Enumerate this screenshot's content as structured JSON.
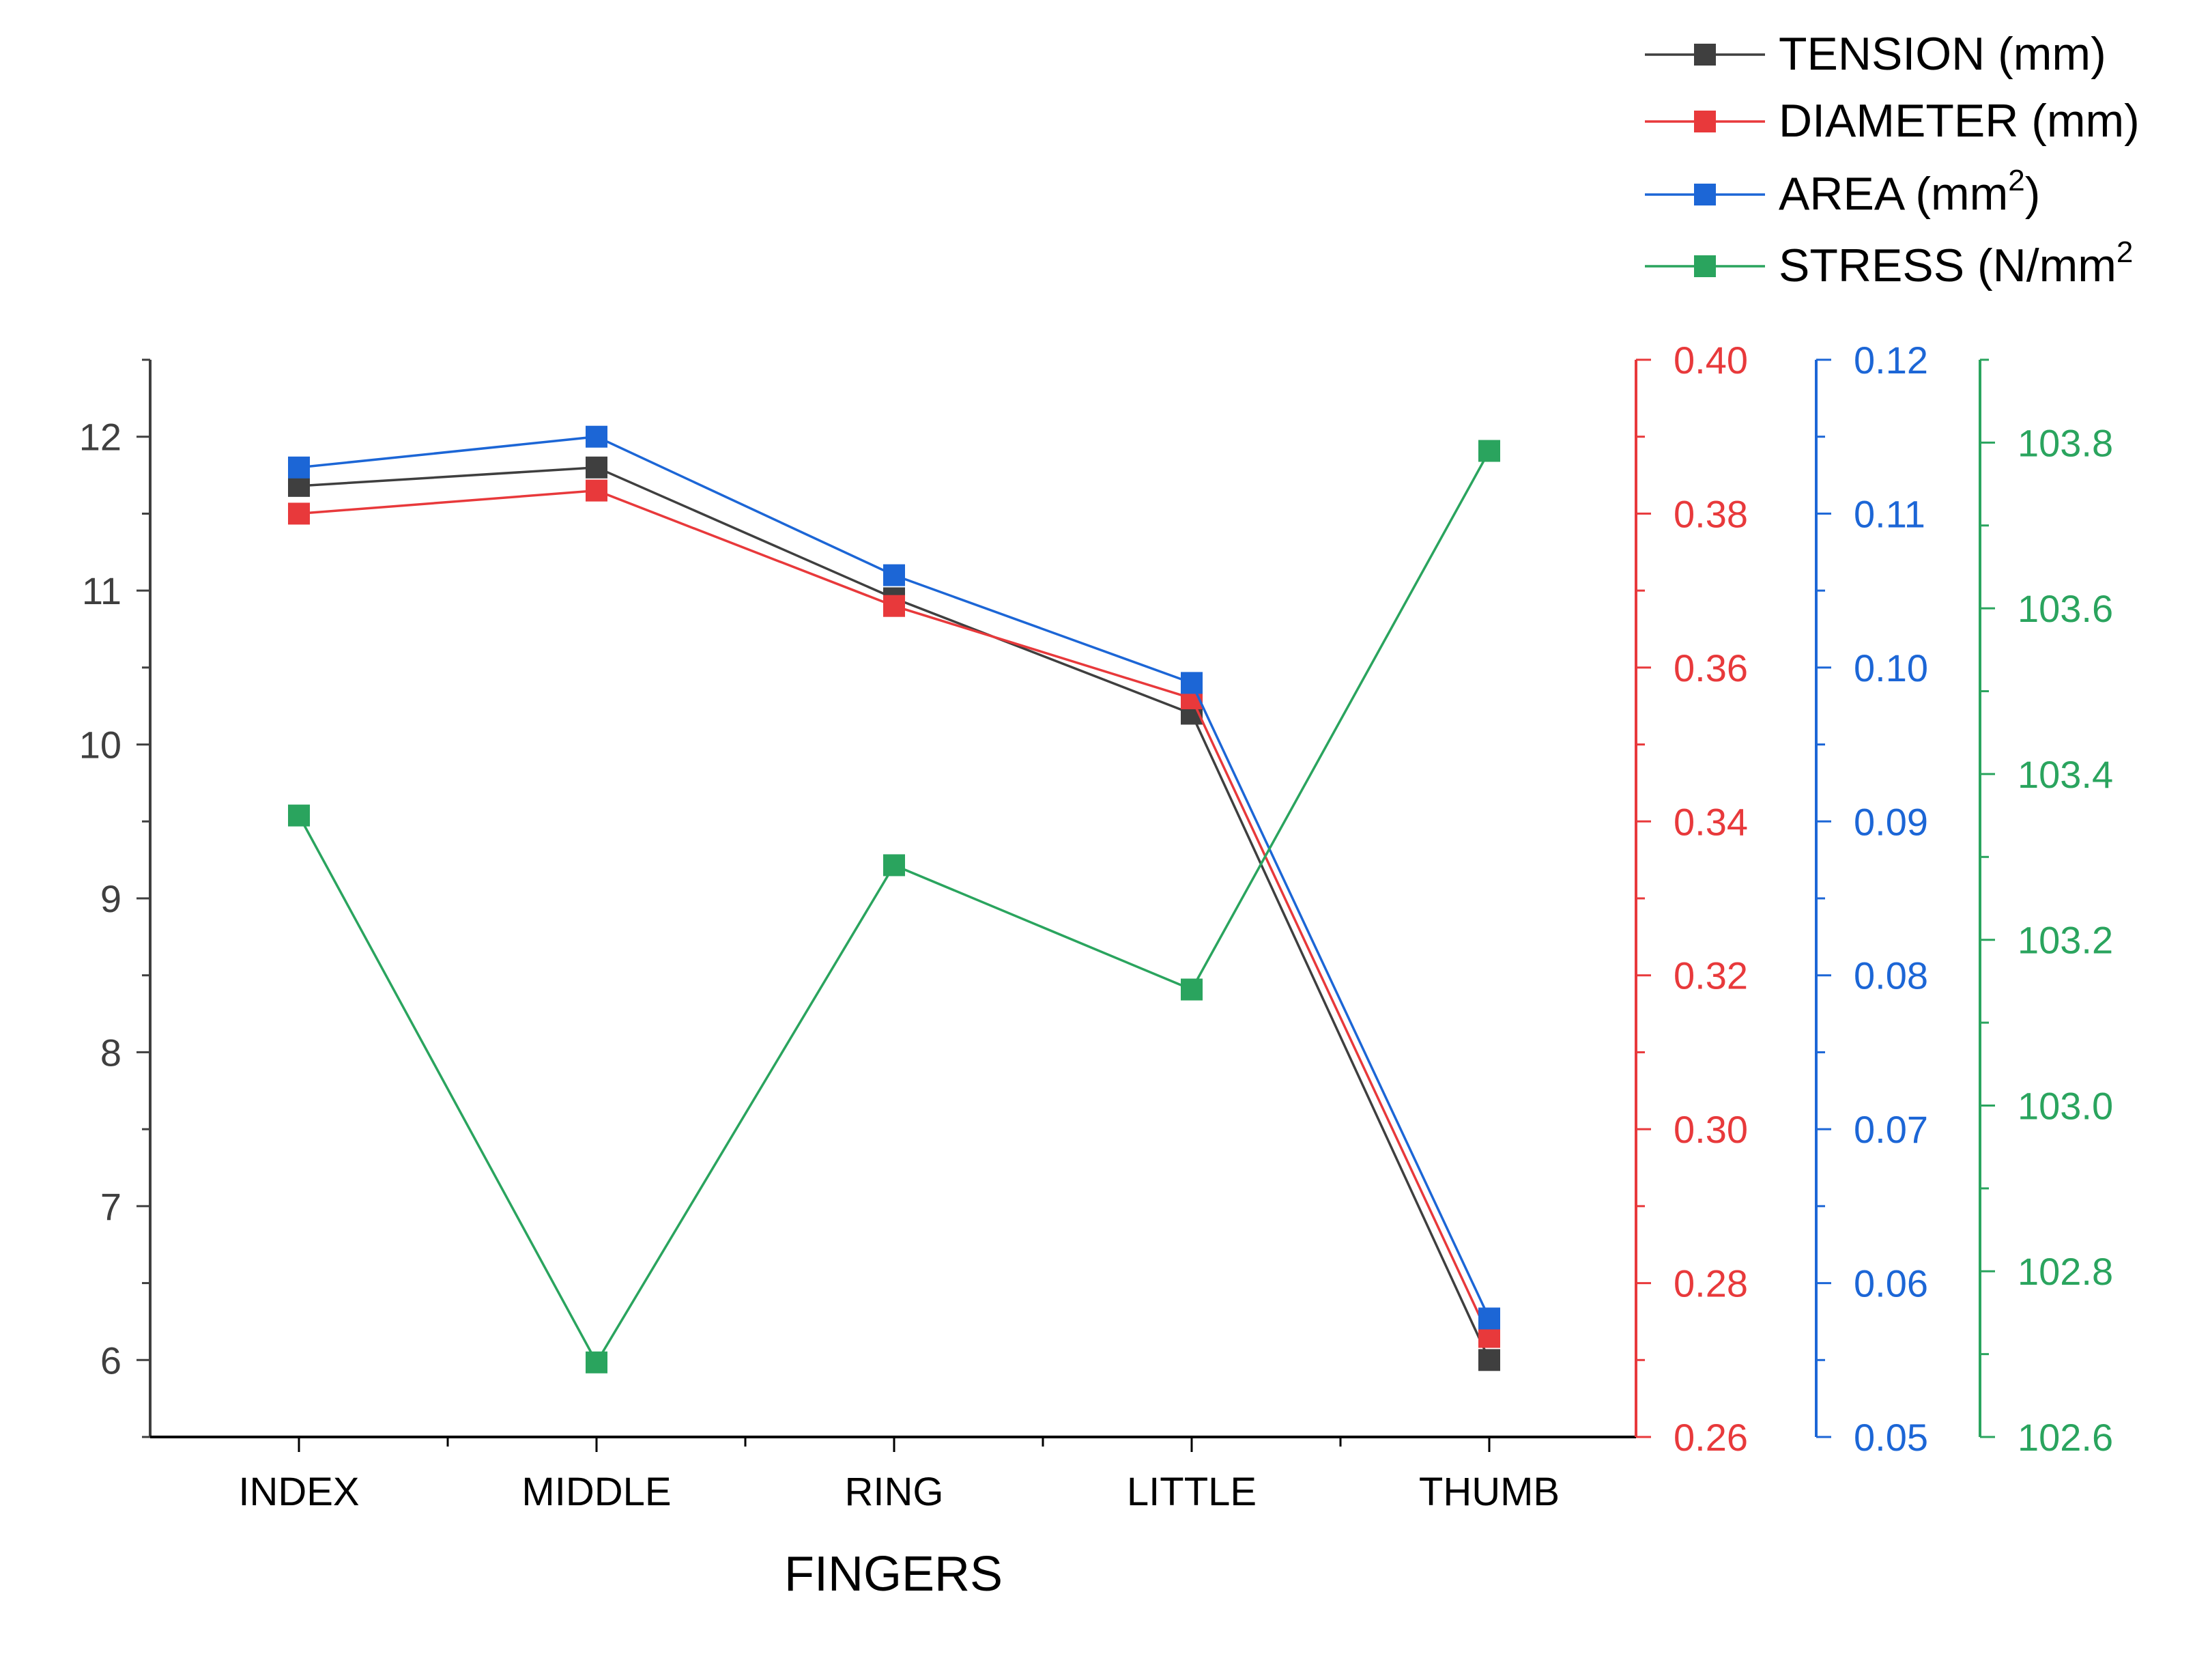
{
  "chart_data": {
    "type": "line",
    "xlabel": "FINGERS",
    "categories": [
      "INDEX",
      "MIDDLE",
      "RING",
      "LITTLE",
      "THUMB"
    ],
    "series": [
      {
        "name": "TENSION (mm)",
        "unit_sup": "",
        "axis": "left",
        "color": "#3f3f3f",
        "values": [
          11.68,
          11.8,
          10.95,
          10.2,
          6.0
        ]
      },
      {
        "name": "DIAMETER (mm)",
        "unit_sup": "",
        "axis": "red",
        "color": "#e8393b",
        "values": [
          0.38,
          0.383,
          0.368,
          0.356,
          0.273
        ]
      },
      {
        "name": "AREA (mm",
        "unit_sup": "2",
        "unit_close": ")",
        "axis": "blue",
        "color": "#1c66d6",
        "values": [
          0.113,
          0.115,
          0.106,
          0.099,
          0.0577
        ]
      },
      {
        "name": "STRESS (N/mm",
        "unit_sup": "2",
        "unit_close": "",
        "axis": "green",
        "color": "#2aa45e",
        "values": [
          103.35,
          102.69,
          103.29,
          103.14,
          103.79
        ]
      }
    ],
    "axes": {
      "left": {
        "min": 5.5,
        "max": 12.5,
        "ticks": [
          "6",
          "7",
          "8",
          "9",
          "10",
          "11",
          "12"
        ],
        "color": "#3f3f3f"
      },
      "red": {
        "min": 0.26,
        "max": 0.4,
        "ticks": [
          "0.26",
          "0.28",
          "0.30",
          "0.32",
          "0.34",
          "0.36",
          "0.38",
          "0.40"
        ],
        "color": "#e8393b"
      },
      "blue": {
        "min": 0.05,
        "max": 0.12,
        "ticks": [
          "0.05",
          "0.06",
          "0.07",
          "0.08",
          "0.09",
          "0.10",
          "0.11",
          "0.12"
        ],
        "color": "#1c66d6"
      },
      "green": {
        "min": 102.6,
        "max": 103.9,
        "ticks": [
          "102.6",
          "102.8",
          "103.0",
          "103.2",
          "103.4",
          "103.6",
          "103.8"
        ],
        "color": "#2aa45e"
      }
    },
    "legend_placement": "top-right",
    "grid": false
  }
}
